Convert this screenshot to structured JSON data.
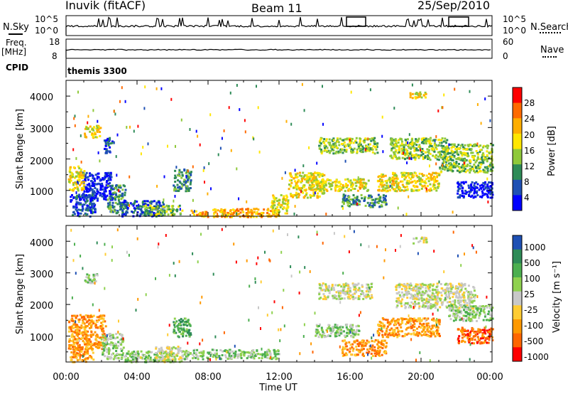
{
  "header": {
    "station": "Inuvik (fitACF)",
    "beam": "Beam 11",
    "date": "25/Sep/2010"
  },
  "top_panels": {
    "nsky_label": "N.Sky",
    "nsky_ticks": [
      "10^5",
      "10^0"
    ],
    "nsearch_label": "N.Search",
    "nsearch_ticks": [
      "10^5",
      "10^0"
    ],
    "freq_label_line1": "Freq.",
    "freq_label_line2": "[MHz]",
    "freq_ticks": [
      "18",
      "8"
    ],
    "nave_label": "Nave",
    "nave_ticks": [
      "60",
      "0"
    ],
    "cpid_label": "CPID",
    "cpid_value": "themis 3300"
  },
  "chart_data": [
    {
      "type": "heatmap",
      "name": "Power",
      "xlabel": "",
      "ylabel": "Slant Range [km]",
      "x_ticks": [
        "00:00",
        "04:00",
        "08:00",
        "12:00",
        "16:00",
        "20:00",
        "00:00"
      ],
      "y_ticks": [
        "1000",
        "2000",
        "3000",
        "4000"
      ],
      "xlim_hours": [
        0,
        24
      ],
      "ylim_km": [
        180,
        4500
      ],
      "colorbar_label": "Power [dB]",
      "colorbar_ticks": [
        "28",
        "24",
        "20",
        "16",
        "12",
        "8",
        "4"
      ],
      "colorbar_colors": [
        "#ff0000",
        "#ff6a00",
        "#ffae00",
        "#ffe600",
        "#8fc93a",
        "#2e8b57",
        "#1e50b4",
        "#0000ff"
      ],
      "regions": [
        {
          "t": [
            0.2,
            1.6
          ],
          "r": [
            200,
            900
          ],
          "level": 6
        },
        {
          "t": [
            0.9,
            2.6
          ],
          "r": [
            700,
            1600
          ],
          "level": 7
        },
        {
          "t": [
            0.1,
            1.0
          ],
          "r": [
            1000,
            1800
          ],
          "level": 3
        },
        {
          "t": [
            2.3,
            3.3
          ],
          "r": [
            300,
            1200
          ],
          "level": 5
        },
        {
          "t": [
            3.0,
            5.5
          ],
          "r": [
            200,
            700
          ],
          "level": 6
        },
        {
          "t": [
            4.3,
            6.5
          ],
          "r": [
            250,
            550
          ],
          "level": 4
        },
        {
          "t": [
            6.0,
            7.0
          ],
          "r": [
            1000,
            1700
          ],
          "level": 5
        },
        {
          "t": [
            7.0,
            12.0
          ],
          "r": [
            180,
            450
          ],
          "level": 2
        },
        {
          "t": [
            1.0,
            1.9
          ],
          "r": [
            2700,
            3100
          ],
          "level": 3
        },
        {
          "t": [
            2.1,
            2.6
          ],
          "r": [
            2200,
            2700
          ],
          "level": 6
        },
        {
          "t": [
            11.5,
            12.5
          ],
          "r": [
            300,
            900
          ],
          "level": 3
        },
        {
          "t": [
            12.5,
            14.5
          ],
          "r": [
            800,
            1600
          ],
          "level": 3
        },
        {
          "t": [
            14.2,
            17.5
          ],
          "r": [
            2200,
            2700
          ],
          "level": 4
        },
        {
          "t": [
            14.0,
            17.0
          ],
          "r": [
            1000,
            1400
          ],
          "level": 3
        },
        {
          "t": [
            15.5,
            18.0
          ],
          "r": [
            500,
            900
          ],
          "level": 5
        },
        {
          "t": [
            17.5,
            21.0
          ],
          "r": [
            1000,
            1600
          ],
          "level": 3
        },
        {
          "t": [
            18.2,
            21.5
          ],
          "r": [
            2000,
            2700
          ],
          "level": 4
        },
        {
          "t": [
            21.0,
            24.0
          ],
          "r": [
            1600,
            2500
          ],
          "level": 4
        },
        {
          "t": [
            22.0,
            24.0
          ],
          "r": [
            800,
            1300
          ],
          "level": 7
        },
        {
          "t": [
            19.3,
            20.3
          ],
          "r": [
            3950,
            4150
          ],
          "level": 3
        }
      ]
    },
    {
      "type": "heatmap",
      "name": "Velocity",
      "xlabel": "Time UT",
      "ylabel": "Slant Range [km]",
      "x_ticks": [
        "00:00",
        "04:00",
        "08:00",
        "12:00",
        "16:00",
        "20:00",
        "00:00"
      ],
      "y_ticks": [
        "1000",
        "2000",
        "3000",
        "4000"
      ],
      "xlim_hours": [
        0,
        24
      ],
      "ylim_km": [
        180,
        4500
      ],
      "colorbar_label": "Velocity [m s⁻¹]",
      "colorbar_ticks": [
        "1000",
        "500",
        "100",
        "25",
        "-25",
        "-100",
        "-500",
        "-1000"
      ],
      "colorbar_colors": [
        "#1e50b4",
        "#2e8b57",
        "#4caf50",
        "#8fd14f",
        "#c8c8c8",
        "#ffcc33",
        "#ff9900",
        "#ff6600",
        "#ff0000"
      ],
      "regions": [
        {
          "t": [
            0.1,
            2.2
          ],
          "r": [
            600,
            1700
          ],
          "level": 6
        },
        {
          "t": [
            0.2,
            1.5
          ],
          "r": [
            200,
            700
          ],
          "level": 6
        },
        {
          "t": [
            2.0,
            3.2
          ],
          "r": [
            300,
            1100
          ],
          "level": 3
        },
        {
          "t": [
            3.0,
            6.0
          ],
          "r": [
            200,
            550
          ],
          "level": 3
        },
        {
          "t": [
            5.0,
            6.5
          ],
          "r": [
            200,
            700
          ],
          "level": 4
        },
        {
          "t": [
            6.0,
            7.0
          ],
          "r": [
            1000,
            1600
          ],
          "level": 2
        },
        {
          "t": [
            6.5,
            12.0
          ],
          "r": [
            300,
            600
          ],
          "level": 3
        },
        {
          "t": [
            14.2,
            17.2
          ],
          "r": [
            2200,
            2700
          ],
          "level": 4
        },
        {
          "t": [
            14.0,
            16.5
          ],
          "r": [
            1000,
            1400
          ],
          "level": 3
        },
        {
          "t": [
            15.5,
            18.0
          ],
          "r": [
            400,
            900
          ],
          "level": 6
        },
        {
          "t": [
            17.5,
            21.0
          ],
          "r": [
            1000,
            1600
          ],
          "level": 6
        },
        {
          "t": [
            18.5,
            23.0
          ],
          "r": [
            1900,
            2700
          ],
          "level": 4
        },
        {
          "t": [
            22.0,
            24.0
          ],
          "r": [
            800,
            1300
          ],
          "level": 7
        },
        {
          "t": [
            21.5,
            24.0
          ],
          "r": [
            1500,
            2000
          ],
          "level": 3
        },
        {
          "t": [
            1.0,
            1.8
          ],
          "r": [
            2700,
            3000
          ],
          "level": 3
        },
        {
          "t": [
            19.5,
            20.3
          ],
          "r": [
            3950,
            4150
          ],
          "level": 4
        }
      ]
    }
  ]
}
